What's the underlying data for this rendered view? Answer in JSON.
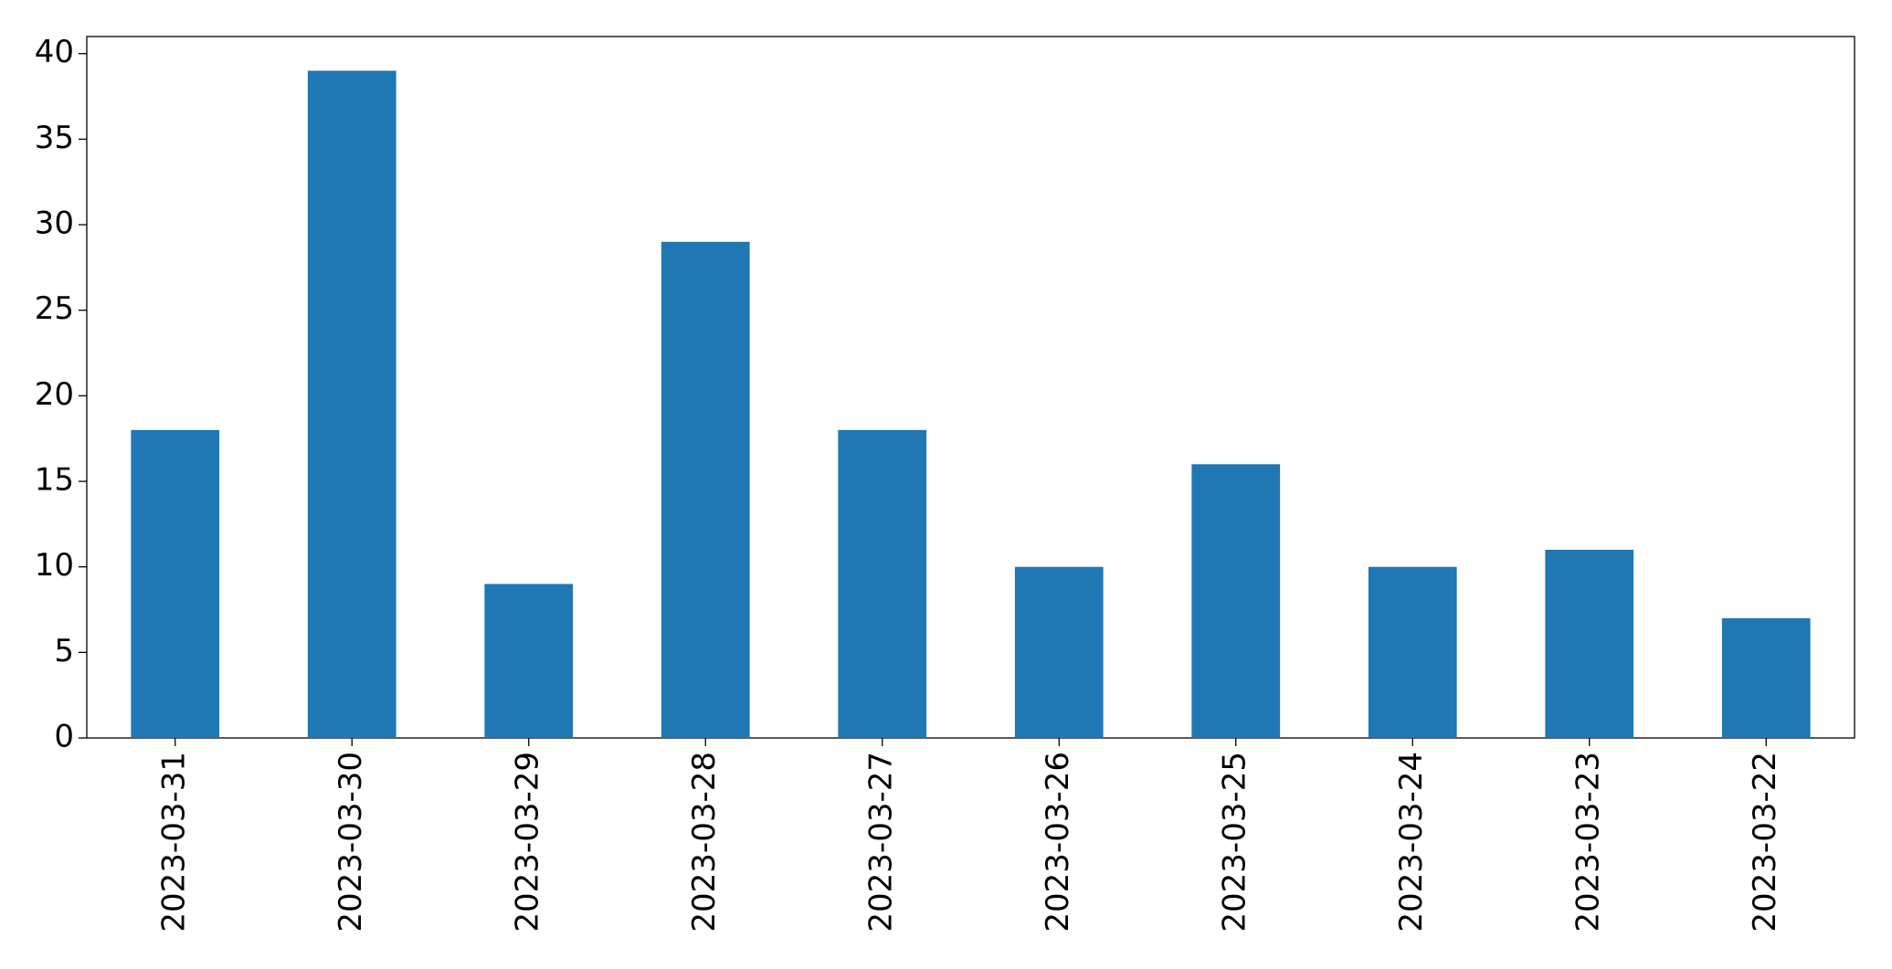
{
  "chart_data": {
    "type": "bar",
    "categories": [
      "2023-03-31",
      "2023-03-30",
      "2023-03-29",
      "2023-03-28",
      "2023-03-27",
      "2023-03-26",
      "2023-03-25",
      "2023-03-24",
      "2023-03-23",
      "2023-03-22"
    ],
    "values": [
      18,
      39,
      9,
      29,
      18,
      10,
      16,
      10,
      11,
      7
    ],
    "color": "#1f77b4",
    "ylim": [
      0,
      41
    ],
    "yticks": [
      0,
      5,
      10,
      15,
      20,
      25,
      30,
      35,
      40
    ],
    "grid": false
  }
}
